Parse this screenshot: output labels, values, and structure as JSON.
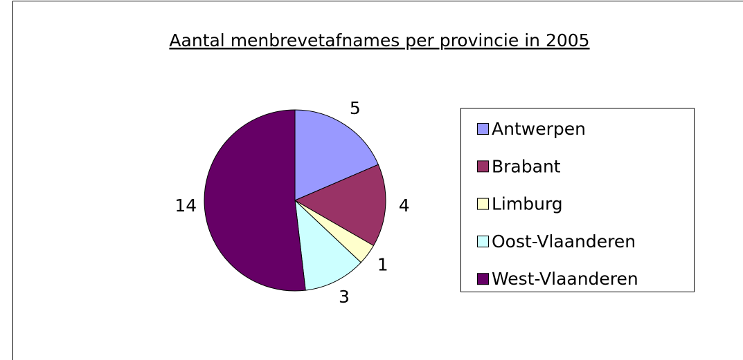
{
  "chart_data": {
    "type": "pie",
    "title": "Aantal menbrevetafnames per provincie in 2005",
    "categories": [
      "Antwerpen",
      "Brabant",
      "Limburg",
      "Oost-Vlaanderen",
      "West-Vlaanderen"
    ],
    "values": [
      5,
      4,
      1,
      3,
      14
    ],
    "colors": [
      "#9999ff",
      "#993366",
      "#ffffcc",
      "#ccffff",
      "#660066"
    ],
    "legend": "right"
  }
}
